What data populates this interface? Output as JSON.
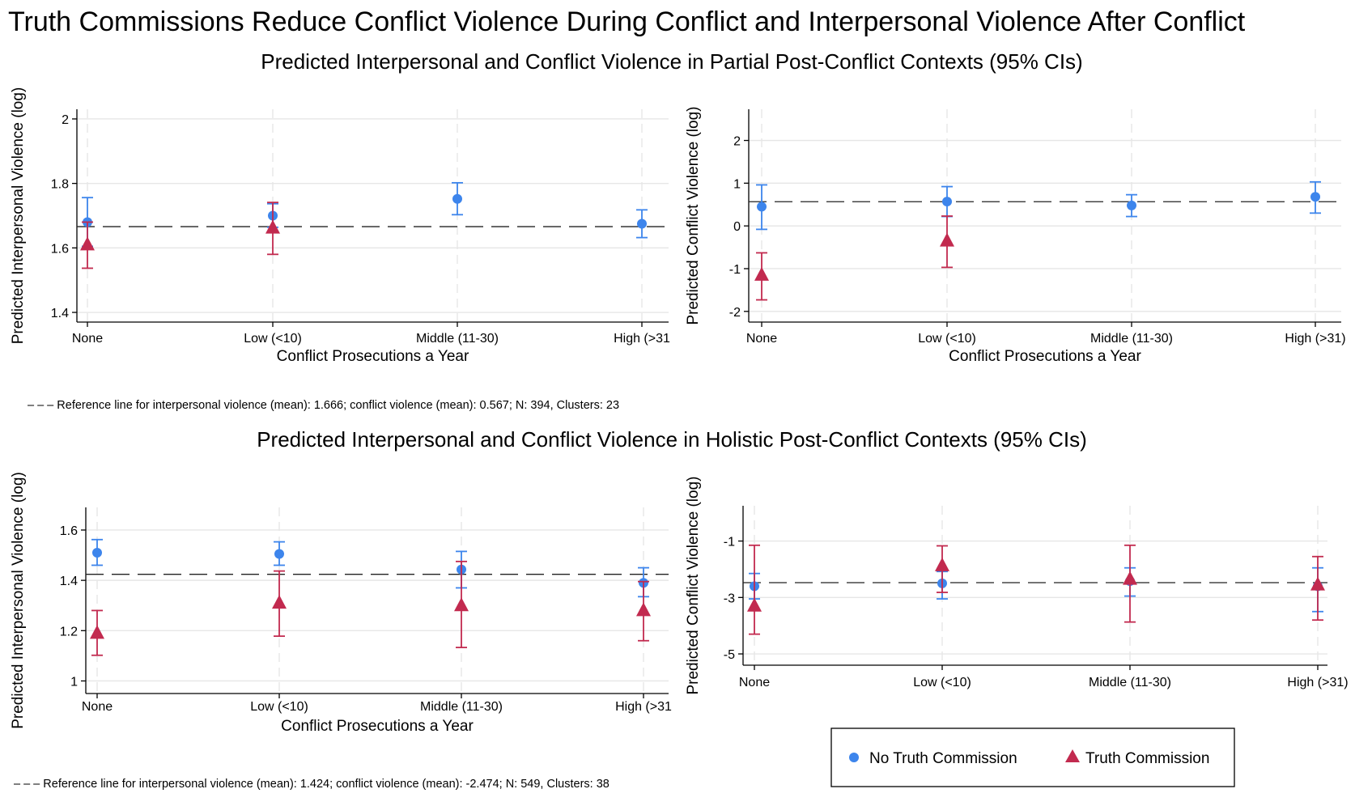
{
  "title": "Truth Commissions Reduce Conflict Violence During Conflict and Interpersonal Violence After Conflict",
  "colors": {
    "no_tc": "#3d85ec",
    "tc": "#c22a4f",
    "grid": "#e6e6e6",
    "ref_line": "#222222"
  },
  "panels": [
    {
      "subtitle": "Predicted Interpersonal and Conflict Violence in Partial Post-Conflict Contexts (95% CIs)",
      "note": "– – – Reference line for interpersonal violence (mean): 1.666; conflict violence (mean): 0.567; N: 394, Clusters: 23"
    },
    {
      "subtitle": "Predicted Interpersonal and Conflict Violence in Holistic Post-Conflict Contexts (95% CIs)",
      "note": "– – – Reference line for interpersonal violence (mean): 1.424; conflict violence (mean): -2.474; N: 549, Clusters: 38"
    }
  ],
  "legend": [
    {
      "label": "No Truth Commission",
      "marker": "circle",
      "color": "#3d85ec"
    },
    {
      "label": "Truth Commission",
      "marker": "triangle",
      "color": "#c22a4f"
    }
  ],
  "chart_data": [
    {
      "type": "scatter",
      "context": "Partial Post-Conflict",
      "xlabel": "Conflict Prosecutions a Year",
      "ylabel": "Predicted Interpersonal Violence (log)",
      "categories": [
        "None",
        "Low (<10)",
        "Middle (11-30)",
        "High (>31"
      ],
      "yticks": [
        1.4,
        1.6,
        1.8,
        2
      ],
      "ytick_labels": [
        "1.4",
        "1.6",
        "1.8",
        "2"
      ],
      "ylim": [
        1.37,
        2.03
      ],
      "reference": 1.666,
      "grid": true,
      "series": [
        {
          "name": "No Truth Commission",
          "marker": "circle",
          "values": [
            1.68,
            1.7,
            1.752,
            1.675
          ],
          "ci_low": [
            1.605,
            1.664,
            1.703,
            1.632
          ],
          "ci_high": [
            1.756,
            1.737,
            1.802,
            1.718
          ]
        },
        {
          "name": "Truth Commission",
          "marker": "triangle",
          "values": [
            1.61,
            1.662,
            null,
            null
          ],
          "ci_low": [
            1.537,
            1.58,
            null,
            null
          ],
          "ci_high": [
            1.68,
            1.741,
            null,
            null
          ]
        }
      ]
    },
    {
      "type": "scatter",
      "context": "Partial Post-Conflict",
      "xlabel": "Conflict Prosecutions a Year",
      "ylabel": "Predicted Conflict Violence (log)",
      "categories": [
        "None",
        "Low (<10)",
        "Middle (11-30)",
        "High (>31)"
      ],
      "yticks": [
        -2,
        -1,
        0,
        1,
        2
      ],
      "ytick_labels": [
        "-2",
        "-1",
        "0",
        "1",
        "2"
      ],
      "ylim": [
        -2.25,
        2.73
      ],
      "reference": 0.567,
      "grid": true,
      "series": [
        {
          "name": "No Truth Commission",
          "marker": "circle",
          "values": [
            0.45,
            0.57,
            0.48,
            0.68
          ],
          "ci_low": [
            -0.08,
            0.22,
            0.22,
            0.3
          ],
          "ci_high": [
            0.96,
            0.92,
            0.73,
            1.03
          ]
        },
        {
          "name": "Truth Commission",
          "marker": "triangle",
          "values": [
            -1.15,
            -0.35,
            null,
            null
          ],
          "ci_low": [
            -1.73,
            -0.97,
            null,
            null
          ],
          "ci_high": [
            -0.63,
            0.23,
            null,
            null
          ]
        }
      ]
    },
    {
      "type": "scatter",
      "context": "Holistic Post-Conflict",
      "xlabel": "Conflict Prosecutions a Year",
      "ylabel": "Predicted Interpersonal Violence (log)",
      "categories": [
        "None",
        "Low (<10)",
        "Middle (11-30)",
        "High (>31"
      ],
      "yticks": [
        1,
        1.2,
        1.4,
        1.6
      ],
      "ytick_labels": [
        "1",
        "1.2",
        "1.4",
        "1.6"
      ],
      "ylim": [
        0.95,
        1.69
      ],
      "reference": 1.424,
      "grid": true,
      "series": [
        {
          "name": "No Truth Commission",
          "marker": "circle",
          "values": [
            1.51,
            1.505,
            1.443,
            1.39
          ],
          "ci_low": [
            1.46,
            1.46,
            1.37,
            1.335
          ],
          "ci_high": [
            1.562,
            1.553,
            1.515,
            1.45
          ]
        },
        {
          "name": "Truth Commission",
          "marker": "triangle",
          "values": [
            1.19,
            1.31,
            1.3,
            1.28
          ],
          "ci_low": [
            1.102,
            1.178,
            1.133,
            1.16
          ],
          "ci_high": [
            1.28,
            1.437,
            1.475,
            1.395
          ]
        }
      ]
    },
    {
      "type": "scatter",
      "context": "Holistic Post-Conflict",
      "xlabel": "",
      "ylabel": "Predicted Conflict Violence (log)",
      "categories": [
        "None",
        "Low (<10)",
        "Middle (11-30)",
        "High (>31)"
      ],
      "yticks": [
        -5,
        -3,
        -1
      ],
      "ytick_labels": [
        "-5",
        "-3",
        "-1"
      ],
      "ylim": [
        -5.4,
        0.25
      ],
      "reference": -2.474,
      "grid": true,
      "series": [
        {
          "name": "No Truth Commission",
          "marker": "circle",
          "values": [
            -2.6,
            -2.5,
            -2.42,
            -2.6
          ],
          "ci_low": [
            -3.05,
            -3.05,
            -2.95,
            -3.5
          ],
          "ci_high": [
            -2.15,
            -2.08,
            -1.95,
            -1.95
          ]
        },
        {
          "name": "Truth Commission",
          "marker": "triangle",
          "values": [
            -3.3,
            -1.87,
            -2.35,
            -2.55
          ],
          "ci_low": [
            -4.3,
            -2.82,
            -3.87,
            -3.8
          ],
          "ci_high": [
            -1.15,
            -1.17,
            -1.15,
            -1.55
          ]
        }
      ]
    }
  ]
}
